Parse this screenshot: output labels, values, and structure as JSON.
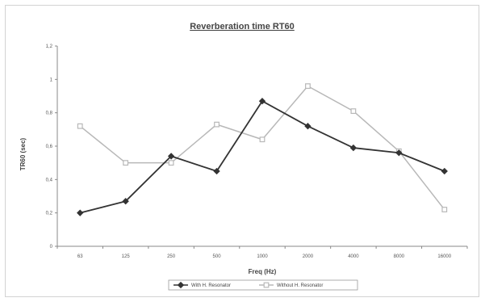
{
  "chart_data": {
    "type": "line",
    "title": "Reverberation time RT60",
    "xlabel": "Freq (Hz)",
    "ylabel": "TR60 (sec)",
    "categories": [
      "63",
      "125",
      "250",
      "500",
      "1000",
      "2000",
      "4000",
      "8000",
      "16000"
    ],
    "ylim": [
      0,
      1.2
    ],
    "yticks": [
      "0",
      "0,2",
      "0,4",
      "0,6",
      "0,8",
      "1",
      "1,2"
    ],
    "grid": false,
    "legend_position": "bottom",
    "series": [
      {
        "name": "With H. Resonator",
        "marker": "diamond",
        "color": "#333333",
        "values": [
          0.2,
          0.27,
          0.54,
          0.45,
          0.87,
          0.72,
          0.59,
          0.56,
          0.45
        ]
      },
      {
        "name": "Without H. Resonator",
        "marker": "square",
        "color": "#b8b8b8",
        "values": [
          0.72,
          0.5,
          0.5,
          0.73,
          0.64,
          0.96,
          0.81,
          0.57,
          0.22
        ]
      }
    ]
  }
}
